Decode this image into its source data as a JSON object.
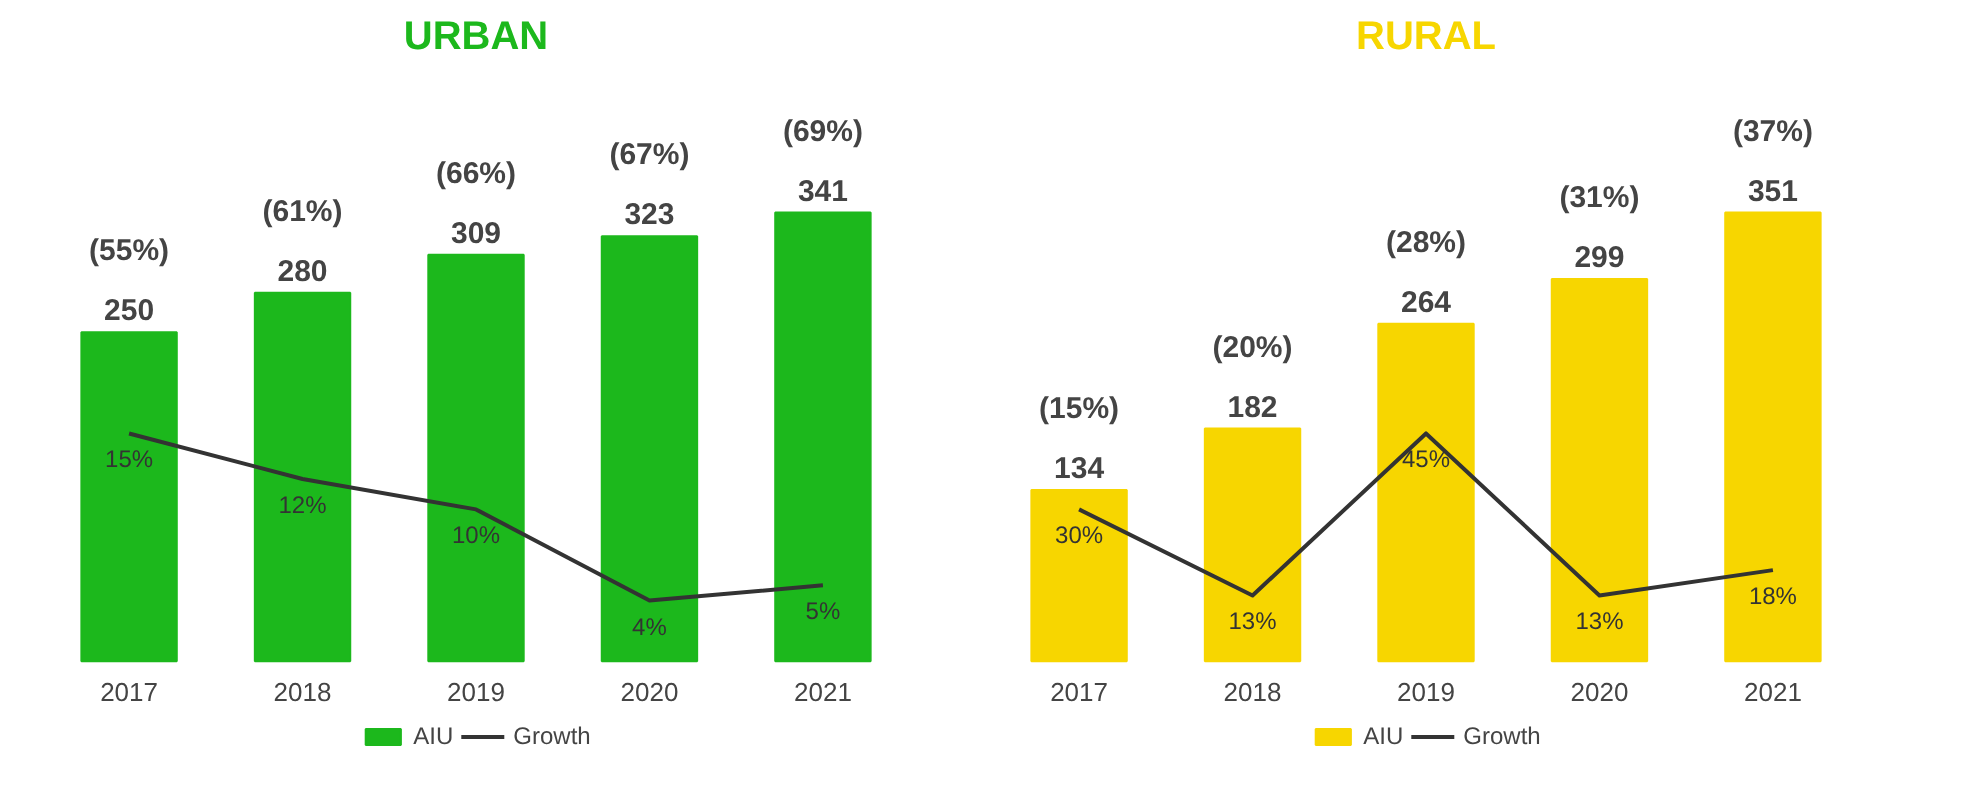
{
  "chart_data": [
    {
      "type": "bar",
      "title": "URBAN",
      "categories": [
        "2017",
        "2018",
        "2019",
        "2020",
        "2021"
      ],
      "legend": "bottom",
      "grid": false,
      "tick_labels": "x",
      "series": [
        {
          "name": "AIU",
          "color": "#1cb81c",
          "values": [
            250,
            280,
            309,
            323,
            341
          ],
          "value_labels": [
            "250",
            "280",
            "309",
            "323",
            "341"
          ]
        },
        {
          "name": "Growth",
          "type": "line",
          "axis": "y2",
          "color": "#333333",
          "values": [
            15,
            12,
            10,
            4,
            5
          ],
          "value_labels": [
            "15%",
            "12%",
            "10%",
            "4%",
            "5%"
          ]
        }
      ],
      "annotations": [
        {
          "text": "(55%)",
          "x": "2017",
          "y": 250
        },
        {
          "text": "(61%)",
          "x": "2018",
          "y": 280
        },
        {
          "text": "(66%)",
          "x": "2019",
          "y": 309
        },
        {
          "text": "(67%)",
          "x": "2020",
          "y": 323
        },
        {
          "text": "(69%)",
          "x": "2021",
          "y": 341
        }
      ]
    },
    {
      "type": "bar",
      "title": "RURAL",
      "categories": [
        "2017",
        "2018",
        "2019",
        "2020",
        "2021"
      ],
      "legend": "bottom",
      "grid": false,
      "tick_labels": "x",
      "series": [
        {
          "name": "AIU",
          "color": "#f7d600",
          "values": [
            134,
            182,
            264,
            299,
            351
          ],
          "value_labels": [
            "134",
            "182",
            "264",
            "299",
            "351"
          ]
        },
        {
          "name": "Growth",
          "type": "line",
          "axis": "y2",
          "color": "#333333",
          "values": [
            30,
            13,
            45,
            13,
            18
          ],
          "value_labels": [
            "30%",
            "13%",
            "45%",
            "13%",
            "18%"
          ]
        }
      ],
      "annotations": [
        {
          "text": "(15%)",
          "x": "2017",
          "y": 134
        },
        {
          "text": "(20%)",
          "x": "2018",
          "y": 182
        },
        {
          "text": "(28%)",
          "x": "2019",
          "y": 264
        },
        {
          "text": "(31%)",
          "x": "2020",
          "y": 299
        },
        {
          "text": "(37%)",
          "x": "2021",
          "y": 351
        }
      ]
    }
  ]
}
